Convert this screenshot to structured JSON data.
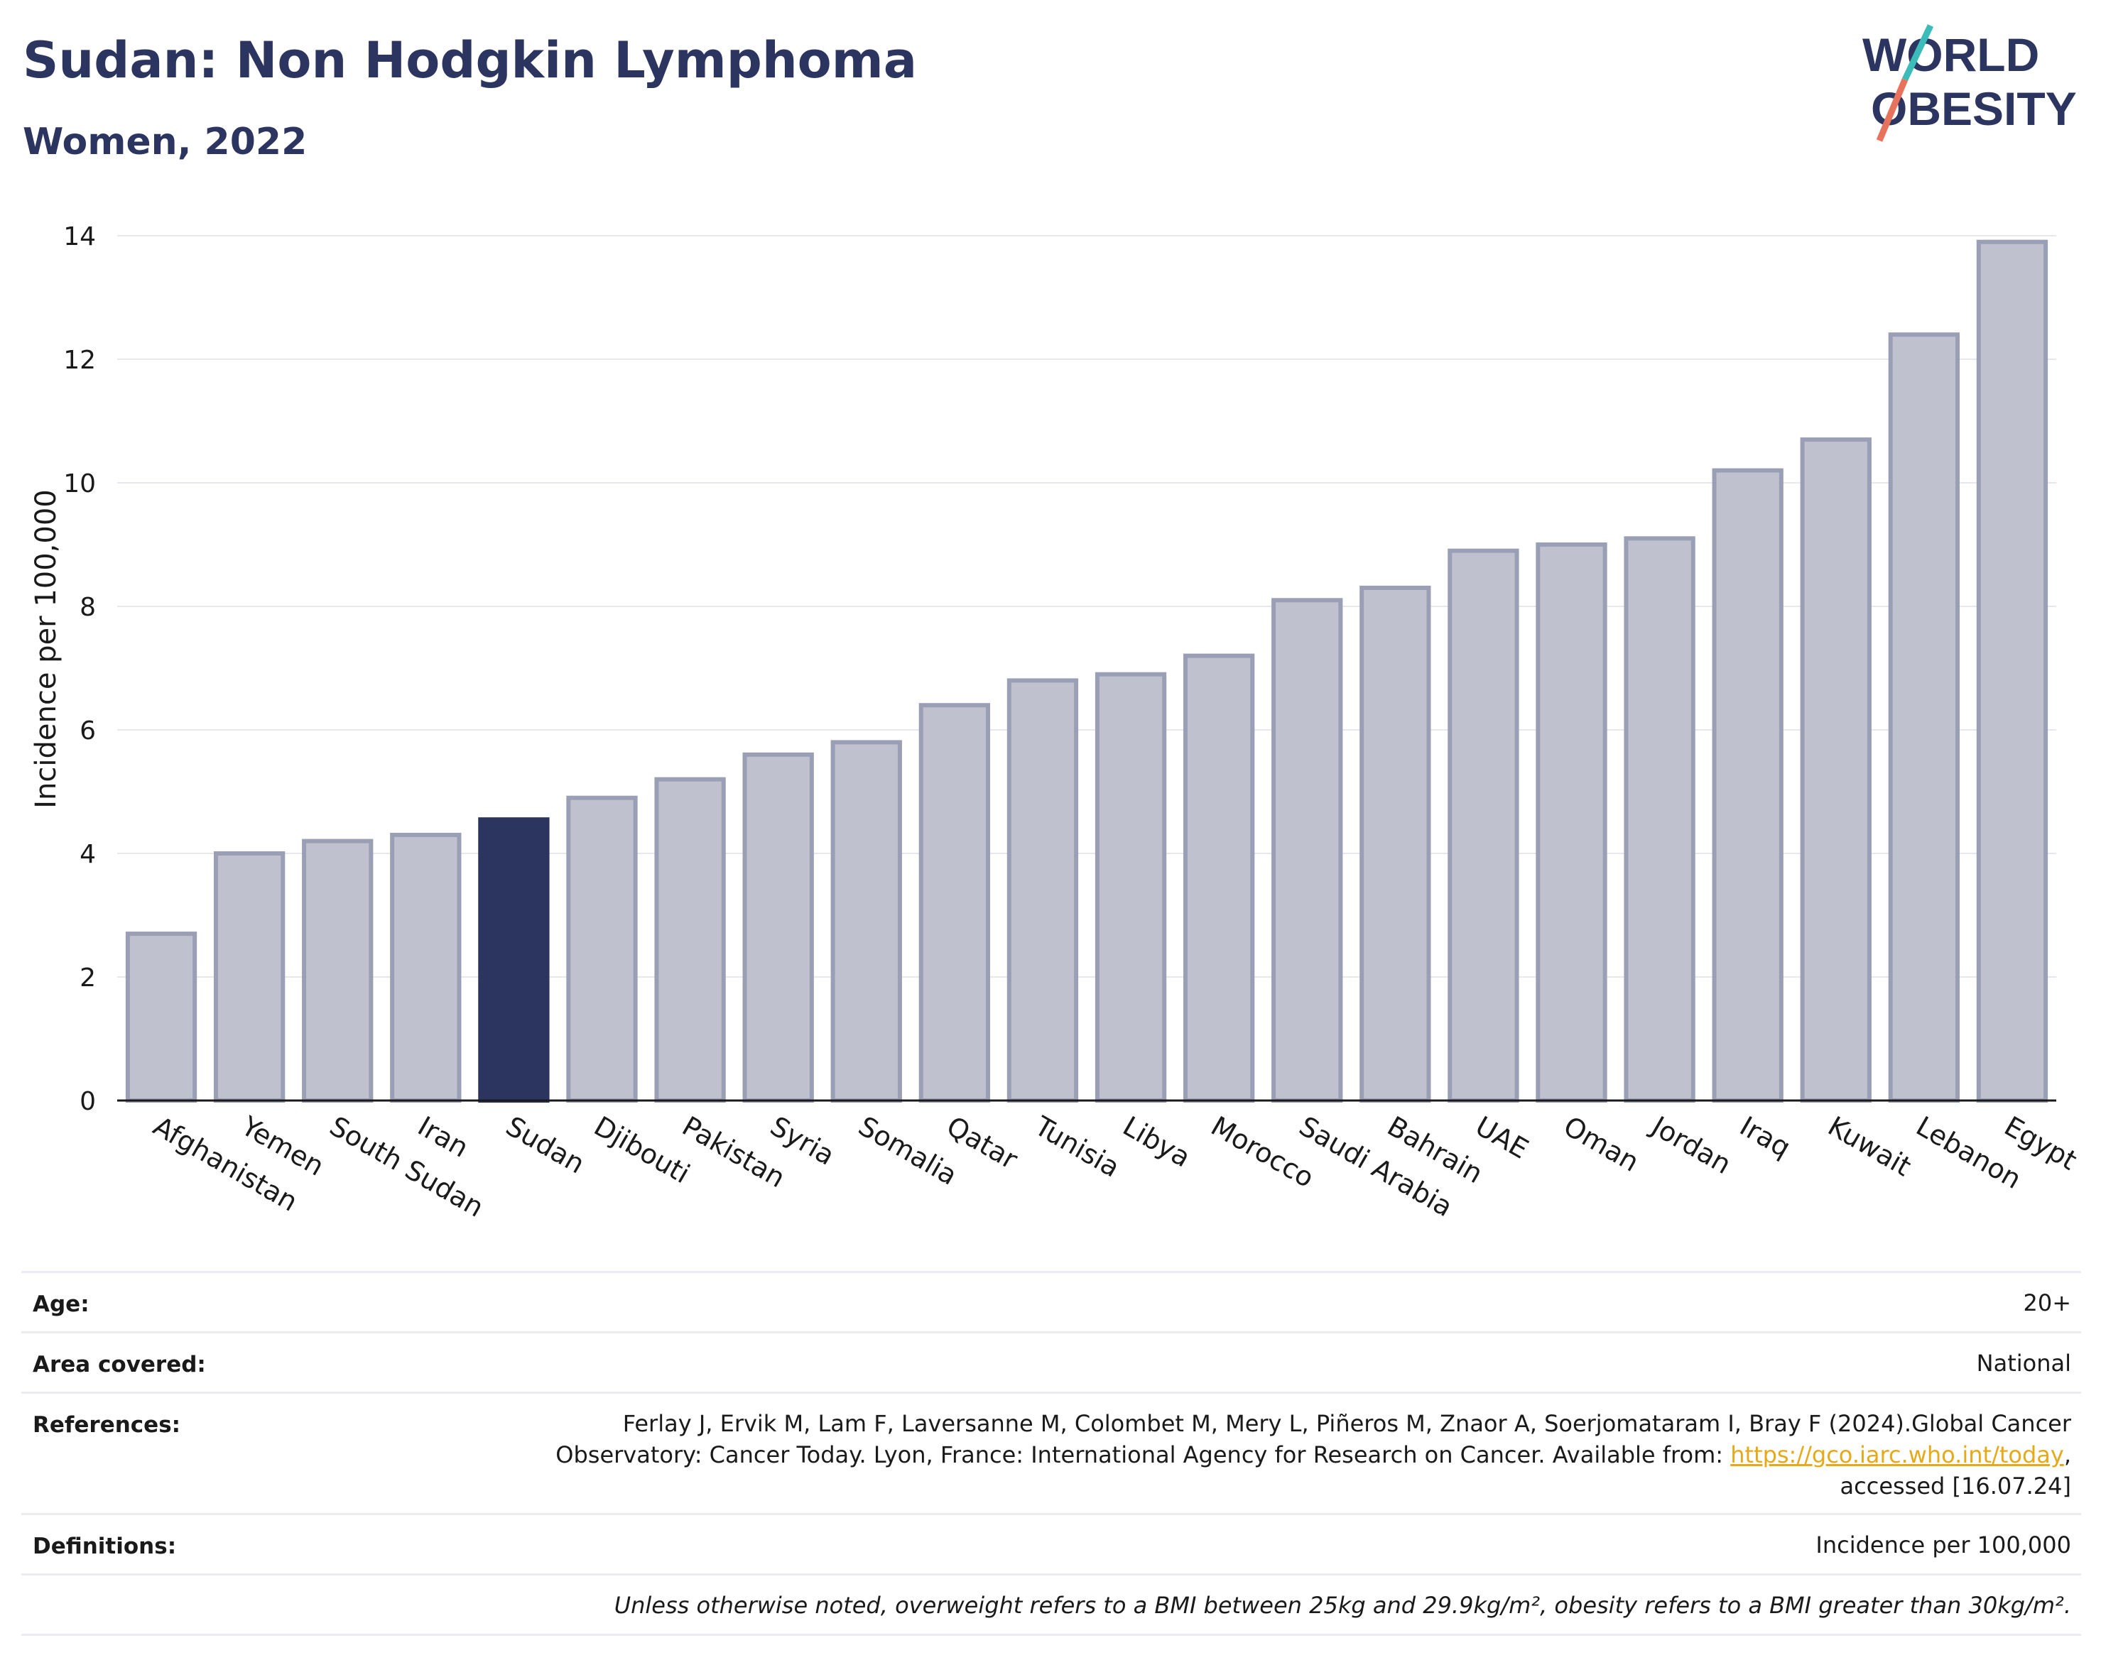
{
  "header": {
    "title": "Sudan: Non Hodgkin Lymphoma",
    "subtitle": "Women, 2022"
  },
  "logo": {
    "line1": "WORLD",
    "line2": "OBESITY",
    "accent_colors": [
      "#3bbcb9",
      "#e8735c"
    ]
  },
  "chart_data": {
    "type": "bar",
    "ylabel": "Incidence per 100,000",
    "ylim": [
      0,
      14
    ],
    "yticks": [
      0,
      2,
      4,
      6,
      8,
      10,
      12,
      14
    ],
    "categories": [
      "Afghanistan",
      "Yemen",
      "South Sudan",
      "Iran",
      "Sudan",
      "Djibouti",
      "Pakistan",
      "Syria",
      "Somalia",
      "Qatar",
      "Tunisia",
      "Libya",
      "Morocco",
      "Saudi Arabia",
      "Bahrain",
      "UAE",
      "Oman",
      "Jordan",
      "Iraq",
      "Kuwait",
      "Lebanon",
      "Egypt"
    ],
    "values": [
      2.7,
      4.0,
      4.2,
      4.3,
      4.55,
      4.9,
      5.2,
      5.6,
      5.8,
      6.4,
      6.8,
      6.9,
      7.2,
      8.1,
      8.3,
      8.9,
      9.0,
      9.1,
      10.2,
      10.7,
      12.4,
      13.9
    ],
    "highlight": "Sudan",
    "colors": {
      "bar": "#bfc2ce",
      "bar_border": "#9a9fb5",
      "highlight": "#2b3560",
      "grid": "#e6e8ee"
    },
    "grid": true
  },
  "info": {
    "age_label": "Age:",
    "age_value": "20+",
    "area_label": "Area covered:",
    "area_value": "National",
    "references_label": "References:",
    "references_line1": "Ferlay J, Ervik M, Lam F, Laversanne M, Colombet M, Mery L, Piñeros M, Znaor A, Soerjomataram I, Bray F (2024).Global Cancer",
    "references_line2_prefix": "Observatory: Cancer Today. Lyon, France: International Agency for Research on Cancer. Available from: ",
    "references_link": "https://gco.iarc.who.int/today",
    "references_line2_suffix": ",",
    "references_line3": "accessed [16.07.24]",
    "definitions_label": "Definitions:",
    "definitions_value": "Incidence per 100,000",
    "note": "Unless otherwise noted, overweight refers to a BMI between 25kg and 29.9kg/m², obesity refers to a BMI greater than 30kg/m²."
  }
}
